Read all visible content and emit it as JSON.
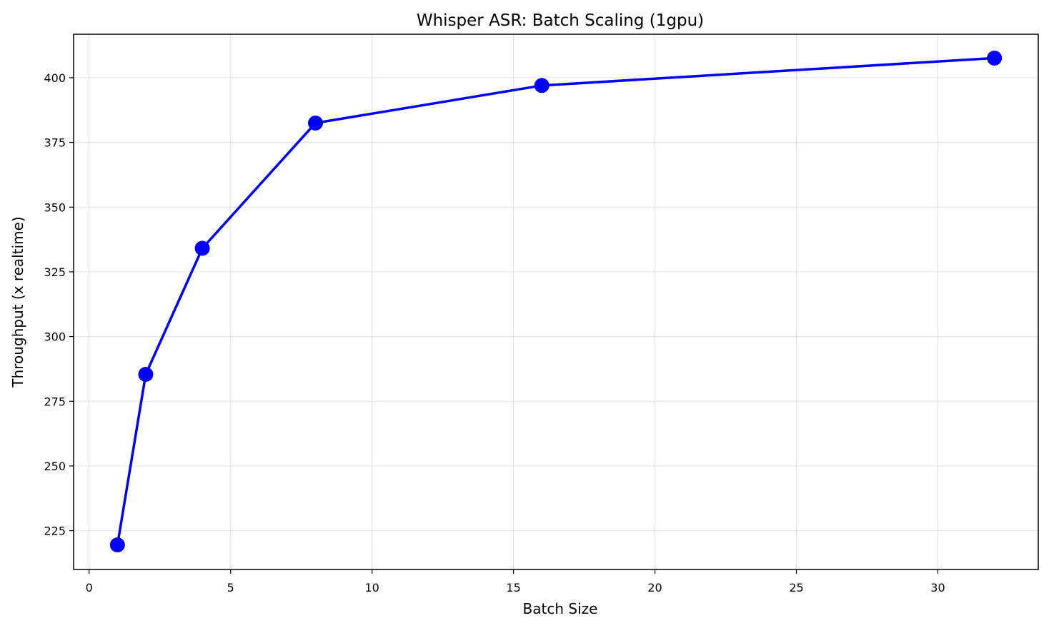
{
  "chart_data": {
    "type": "line",
    "title": "Whisper ASR: Batch Scaling (1gpu)",
    "x_label": "Batch Size",
    "y_label": "Throughput (x realtime)",
    "x": [
      1,
      2,
      4,
      8,
      16,
      32
    ],
    "series": [
      {
        "name": "Throughput",
        "color": "#0000ff",
        "values": [
          219.5,
          285.4,
          334.1,
          382.5,
          397.0,
          407.6
        ]
      }
    ],
    "xlim": [
      -0.55,
      33.55
    ],
    "ylim": [
      210.0,
      416.8
    ],
    "xticks": [
      0,
      5,
      10,
      15,
      20,
      25,
      30
    ],
    "yticks": [
      225,
      250,
      275,
      300,
      325,
      350,
      375,
      400
    ],
    "grid": true
  }
}
